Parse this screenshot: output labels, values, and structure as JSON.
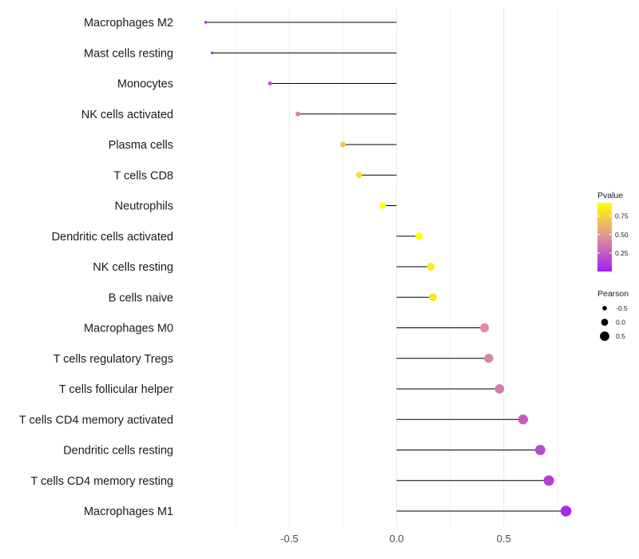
{
  "chart_data": {
    "type": "lollipop",
    "title": "",
    "xlabel": "",
    "ylabel": "",
    "xlim": [
      -1.0,
      0.84
    ],
    "x_ticks": [
      -0.5,
      0.0,
      0.5
    ],
    "x_tick_labels": [
      "-0.5",
      "0.0",
      "0.5"
    ],
    "categories": [
      "Macrophages M2",
      "Mast cells resting",
      "Monocytes",
      "NK cells activated",
      "Plasma cells",
      "T cells CD8",
      "Neutrophils",
      "Dendritic cells activated",
      "NK cells resting",
      "B cells naive",
      "Macrophages M0",
      "T cells regulatory  Tregs ",
      "T cells follicular helper",
      "T cells CD4 memory activated",
      "Dendritic cells resting",
      "T cells CD4 memory resting",
      "Macrophages M1"
    ],
    "pearson": [
      -0.89,
      -0.86,
      -0.59,
      -0.46,
      -0.25,
      -0.175,
      -0.065,
      0.105,
      0.16,
      0.17,
      0.41,
      0.43,
      0.48,
      0.59,
      0.67,
      0.71,
      0.79
    ],
    "pvalue": [
      0.02,
      0.05,
      0.2,
      0.4,
      0.7,
      0.8,
      0.96,
      0.96,
      0.85,
      0.83,
      0.45,
      0.42,
      0.38,
      0.25,
      0.18,
      0.12,
      0.05
    ],
    "legend": {
      "color_title": "Pvalue",
      "color_ticks": [
        0.25,
        0.5,
        0.75
      ],
      "color_tick_labels": [
        "0.25",
        "0.50",
        "0.75"
      ],
      "color_range": [
        0.0,
        0.93
      ],
      "color_low": "#a020f0",
      "color_mid": "#e0909f",
      "color_high": "#ffff00",
      "size_title": "Pearson",
      "size_values": [
        -0.5,
        0.0,
        0.5
      ],
      "size_labels": [
        "-0.5",
        "0.0",
        "0.5"
      ]
    },
    "grid": true
  }
}
